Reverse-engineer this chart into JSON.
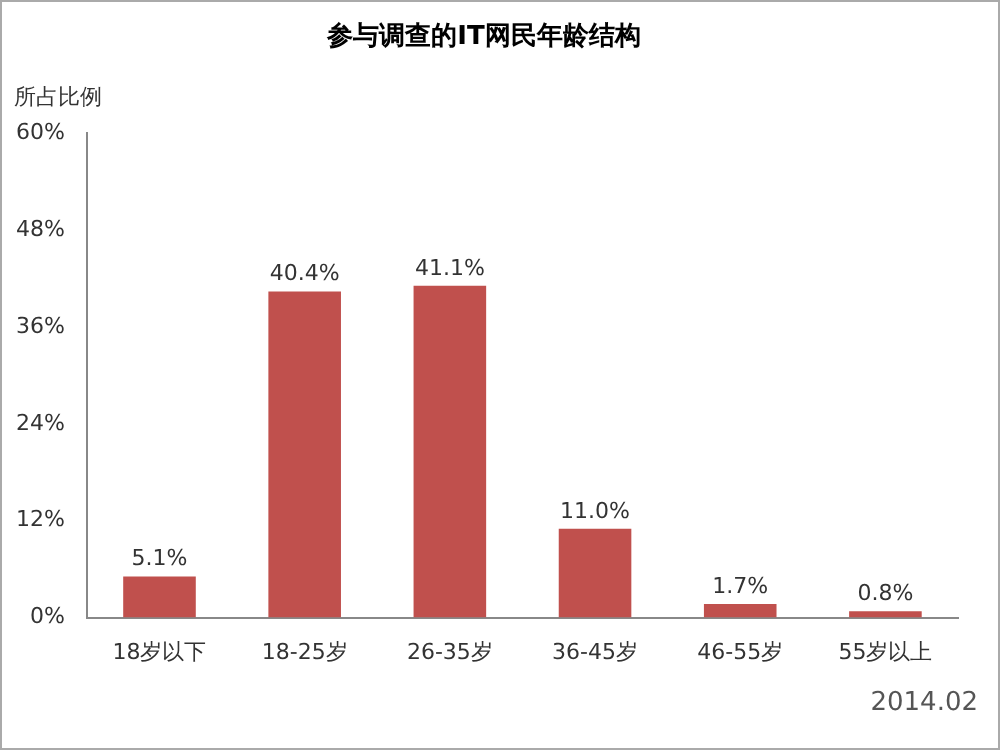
{
  "chart_data": {
    "type": "bar",
    "title": "参与调查的IT网民年龄结构",
    "ylabel": "所占比例",
    "categories": [
      "18岁以下",
      "18-25岁",
      "26-35岁",
      "36-45岁",
      "46-55岁",
      "55岁以上"
    ],
    "values": [
      5.1,
      40.4,
      41.1,
      11.0,
      1.7,
      0.8
    ],
    "value_labels": [
      "5.1%",
      "40.4%",
      "41.1%",
      "11.0%",
      "1.7%",
      "0.8%"
    ],
    "color": "#c0504d",
    "ylim": [
      0,
      60
    ],
    "yticks": [
      {
        "value": 0,
        "label": "0%"
      },
      {
        "value": 12,
        "label": "12%"
      },
      {
        "value": 24,
        "label": "24%"
      },
      {
        "value": 36,
        "label": "36%"
      },
      {
        "value": 48,
        "label": "48%"
      },
      {
        "value": 60,
        "label": "60%"
      }
    ],
    "grid": false,
    "legend": false,
    "annotations": [
      "2014.02"
    ]
  }
}
